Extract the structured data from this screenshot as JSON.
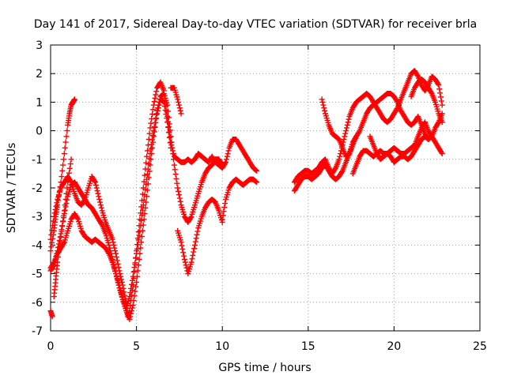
{
  "chart_data": {
    "type": "scatter",
    "title": "Day 141 of 2017, Sidereal Day-to-day VTEC variation (SDTVAR) for receiver brla",
    "xlabel": "GPS time / hours",
    "ylabel": "SDTVAR / TECUs",
    "xlim": [
      0,
      25
    ],
    "ylim": [
      -7,
      3
    ],
    "xticks": [
      "0",
      "5",
      "10",
      "15",
      "20",
      "25"
    ],
    "yticks": [
      "-7",
      "-6",
      "-5",
      "-4",
      "-3",
      "-2",
      "-1",
      "0",
      "1",
      "2",
      "3"
    ],
    "grid": true,
    "marker": "plus",
    "color": "#ff0000",
    "series": [
      {
        "x": [
          0.0,
          0.2,
          0.4,
          0.6,
          0.8,
          1.0,
          1.2,
          1.4,
          1.6,
          1.8,
          2.0,
          2.2,
          2.4,
          2.6,
          2.8,
          3.0,
          3.2,
          3.4,
          3.6,
          3.8,
          4.0,
          4.2,
          4.4,
          4.5,
          4.6,
          4.8,
          5.0,
          5.2,
          5.4,
          5.6,
          5.8,
          6.0,
          6.2,
          6.4,
          6.6,
          6.8,
          7.0,
          7.2,
          7.4,
          7.6,
          7.8,
          8.0,
          8.2,
          8.4,
          8.6,
          8.8,
          9.0,
          9.2,
          9.4,
          9.6,
          9.8,
          10.0,
          10.2,
          10.4,
          10.6,
          10.8,
          11.0,
          11.2,
          11.4,
          11.6,
          11.8,
          12.0
        ],
        "y": [
          -3.8,
          -3.0,
          -2.4,
          -2.0,
          -1.8,
          -1.6,
          -1.8,
          -2.2,
          -2.5,
          -2.6,
          -2.4,
          -2.0,
          -1.6,
          -1.8,
          -2.3,
          -2.8,
          -3.2,
          -3.5,
          -3.8,
          -4.3,
          -4.9,
          -5.4,
          -6.0,
          -6.5,
          -6.3,
          -5.4,
          -4.2,
          -3.1,
          -2.0,
          -0.9,
          0.1,
          0.9,
          1.5,
          1.7,
          1.4,
          0.5,
          -0.4,
          -0.9,
          -1.0,
          -1.1,
          -1.1,
          -1.0,
          -1.1,
          -1.0,
          -0.8,
          -0.9,
          -1.0,
          -1.1,
          -0.9,
          -1.1,
          -1.2,
          -1.3,
          -1.1,
          -0.6,
          -0.3,
          -0.3,
          -0.5,
          -0.7,
          -0.9,
          -1.1,
          -1.3,
          -1.4
        ]
      },
      {
        "x": [
          0.0,
          0.2,
          0.4,
          0.6,
          0.8,
          1.0,
          1.2,
          1.4,
          1.6,
          1.8,
          2.0,
          2.2,
          2.4,
          2.6,
          2.8,
          3.0,
          3.2,
          3.4,
          3.6,
          3.8,
          4.0,
          4.2,
          4.4,
          4.6,
          4.8,
          5.0,
          5.2,
          5.4,
          5.6,
          5.8,
          6.0,
          6.2,
          6.4,
          6.6,
          6.8,
          7.0,
          7.2,
          7.4,
          7.6,
          7.8,
          8.0,
          8.2,
          8.4,
          8.6,
          8.8,
          9.0,
          9.2,
          9.4,
          9.6,
          9.8,
          10.0
        ],
        "y": [
          -4.9,
          -4.7,
          -4.2,
          -3.6,
          -2.9,
          -2.3,
          -1.9,
          -1.8,
          -2.0,
          -2.2,
          -2.4,
          -2.6,
          -2.7,
          -2.9,
          -3.1,
          -3.3,
          -3.6,
          -4.0,
          -4.5,
          -5.0,
          -5.5,
          -5.9,
          -6.2,
          -5.8,
          -5.1,
          -4.3,
          -3.5,
          -2.6,
          -1.7,
          -0.8,
          0.0,
          0.7,
          1.2,
          1.3,
          0.9,
          -0.2,
          -1.2,
          -2.0,
          -2.6,
          -3.0,
          -3.2,
          -3.0,
          -2.6,
          -2.2,
          -1.8,
          -1.5,
          -1.3,
          -1.2,
          -1.0,
          -1.0,
          -1.2
        ]
      },
      {
        "x": [
          0.0,
          0.2,
          0.4,
          0.6,
          0.8,
          1.0,
          1.2,
          1.4,
          1.6,
          1.8,
          2.0,
          2.2,
          2.4,
          2.6,
          2.8,
          3.0,
          3.2,
          3.4,
          3.6,
          3.8,
          4.0,
          4.2,
          4.4,
          4.6,
          4.8,
          5.0,
          5.2,
          5.4,
          5.6,
          5.8,
          6.0,
          6.2,
          6.4,
          6.6,
          6.8,
          7.0
        ],
        "y": [
          -4.8,
          -4.6,
          -4.3,
          -4.1,
          -3.9,
          -3.5,
          -3.1,
          -2.9,
          -3.1,
          -3.5,
          -3.7,
          -3.8,
          -3.9,
          -3.8,
          -3.9,
          -4.0,
          -4.1,
          -4.3,
          -4.6,
          -5.0,
          -5.4,
          -5.9,
          -6.3,
          -6.6,
          -6.1,
          -5.3,
          -4.3,
          -3.3,
          -2.3,
          -1.2,
          -0.2,
          0.6,
          1.1,
          1.0,
          0.3,
          -0.6
        ]
      },
      {
        "x": [
          0.0,
          0.2,
          0.3,
          0.4,
          0.6,
          0.8,
          1.0,
          1.1,
          1.2,
          1.3,
          1.4
        ],
        "y": [
          -4.2,
          -3.5,
          -3.0,
          -2.6,
          -1.8,
          -0.8,
          0.2,
          0.6,
          0.9,
          1.0,
          1.1
        ]
      },
      {
        "x": [
          0.2,
          0.3,
          0.4,
          0.6,
          0.8,
          1.0,
          1.2
        ],
        "y": [
          -5.8,
          -5.2,
          -4.6,
          -3.7,
          -2.8,
          -1.8,
          -1.0
        ]
      },
      {
        "x": [
          0.0,
          0.1
        ],
        "y": [
          -6.3,
          -6.5
        ]
      },
      {
        "x": [
          7.4,
          7.6,
          7.8,
          8.0,
          8.2,
          8.4,
          8.6,
          8.8,
          9.0,
          9.2,
          9.4,
          9.6,
          9.8,
          10.0
        ],
        "y": [
          -3.5,
          -3.9,
          -4.5,
          -5.0,
          -4.6,
          -4.0,
          -3.4,
          -3.0,
          -2.7,
          -2.5,
          -2.4,
          -2.5,
          -2.8,
          -3.2
        ]
      },
      {
        "x": [
          10.0,
          10.2,
          10.4,
          10.6,
          10.8,
          11.0,
          11.2,
          11.4,
          11.6,
          11.8,
          12.0
        ],
        "y": [
          -3.1,
          -2.4,
          -2.0,
          -1.8,
          -1.7,
          -1.8,
          -1.9,
          -1.8,
          -1.7,
          -1.7,
          -1.8
        ]
      },
      {
        "x": [
          7.0,
          7.2,
          7.4,
          7.6
        ],
        "y": [
          1.5,
          1.5,
          1.1,
          0.6
        ]
      },
      {
        "x": [
          14.2,
          14.4,
          14.6,
          14.8,
          15.0,
          15.2,
          15.4,
          15.6,
          15.8,
          16.0,
          16.2,
          16.4,
          16.6,
          16.8,
          17.0,
          17.2,
          17.4,
          17.6,
          17.8,
          18.0,
          18.2,
          18.4,
          18.6,
          18.8,
          19.0,
          19.2,
          19.4,
          19.6,
          19.8,
          20.0,
          20.2,
          20.4,
          20.6,
          20.8,
          21.0,
          21.2,
          21.4,
          21.6,
          21.8,
          22.0,
          22.2,
          22.4,
          22.6,
          22.8
        ],
        "y": [
          -1.8,
          -1.6,
          -1.5,
          -1.4,
          -1.4,
          -1.5,
          -1.4,
          -1.3,
          -1.1,
          -1.0,
          -1.3,
          -1.5,
          -1.3,
          -1.0,
          -0.5,
          0.0,
          0.5,
          0.8,
          1.0,
          1.1,
          1.2,
          1.3,
          1.2,
          1.0,
          0.8,
          0.6,
          0.4,
          0.3,
          0.4,
          0.6,
          0.8,
          1.1,
          1.4,
          1.7,
          2.0,
          2.1,
          1.9,
          1.6,
          1.4,
          1.6,
          1.9,
          1.8,
          1.6,
          0.9
        ]
      },
      {
        "x": [
          14.2,
          14.4,
          14.6,
          14.8,
          15.0,
          15.2,
          15.4,
          15.6,
          15.8,
          16.0,
          16.2,
          16.4,
          16.6,
          16.8,
          17.0,
          17.2,
          17.4,
          17.6,
          17.8,
          18.0,
          18.2,
          18.4,
          18.6,
          18.8,
          19.0,
          19.2,
          19.4,
          19.6,
          19.8,
          20.0,
          20.2,
          20.4,
          20.6,
          20.8,
          21.0,
          21.2,
          21.4,
          21.6,
          21.8,
          22.0,
          22.2,
          22.4,
          22.6,
          22.8
        ],
        "y": [
          -2.1,
          -1.9,
          -1.7,
          -1.6,
          -1.6,
          -1.7,
          -1.6,
          -1.5,
          -1.3,
          -1.2,
          -1.4,
          -1.6,
          -1.7,
          -1.6,
          -1.4,
          -1.1,
          -0.8,
          -0.4,
          -0.2,
          0.0,
          0.3,
          0.6,
          0.8,
          0.9,
          1.0,
          1.1,
          1.2,
          1.3,
          1.3,
          1.2,
          1.0,
          0.7,
          0.5,
          0.3,
          0.2,
          0.3,
          0.5,
          0.2,
          -0.1,
          -0.3,
          -0.2,
          0.1,
          0.3,
          0.6
        ]
      },
      {
        "x": [
          15.8,
          16.0,
          16.2,
          16.4,
          16.6,
          16.8,
          17.0,
          17.2,
          17.4,
          17.6,
          17.8
        ],
        "y": [
          1.1,
          0.6,
          0.2,
          -0.1,
          -0.2,
          -0.3,
          -0.6,
          -0.9,
          -0.8,
          -0.5,
          -0.2
        ]
      },
      {
        "x": [
          17.6,
          17.8,
          18.0,
          18.2,
          18.4,
          18.6,
          18.8,
          19.0,
          19.2,
          19.4,
          19.6,
          19.8,
          20.0,
          20.2,
          20.4,
          20.6,
          20.8,
          21.0,
          21.2,
          21.4,
          21.6,
          21.8,
          22.0,
          22.2,
          22.4,
          22.6,
          22.8
        ],
        "y": [
          -1.5,
          -1.2,
          -0.9,
          -0.7,
          -0.7,
          -0.8,
          -0.9,
          -0.8,
          -0.7,
          -0.8,
          -0.8,
          -0.7,
          -0.6,
          -0.7,
          -0.8,
          -0.8,
          -0.7,
          -0.6,
          -0.5,
          -0.2,
          0.1,
          0.3,
          0.0,
          -0.2,
          -0.4,
          -0.6,
          -0.8
        ]
      },
      {
        "x": [
          18.6,
          18.8,
          19.0,
          19.2,
          19.4,
          19.6,
          19.8,
          20.0,
          20.2,
          20.4,
          20.6,
          20.8,
          21.0,
          21.2,
          21.4,
          21.6,
          21.8,
          22.0
        ],
        "y": [
          -0.2,
          -0.5,
          -0.8,
          -1.0,
          -0.9,
          -0.8,
          -0.9,
          -1.1,
          -1.0,
          -0.9,
          -0.9,
          -1.0,
          -0.9,
          -0.7,
          -0.5,
          -0.3,
          -0.2,
          -0.3
        ]
      },
      {
        "x": [
          21.0,
          21.2,
          21.4,
          21.6,
          21.8,
          22.0,
          22.2,
          22.4,
          22.6,
          22.8
        ],
        "y": [
          1.2,
          1.5,
          1.7,
          1.8,
          1.7,
          1.5,
          1.3,
          1.0,
          0.6,
          0.3
        ]
      }
    ]
  }
}
